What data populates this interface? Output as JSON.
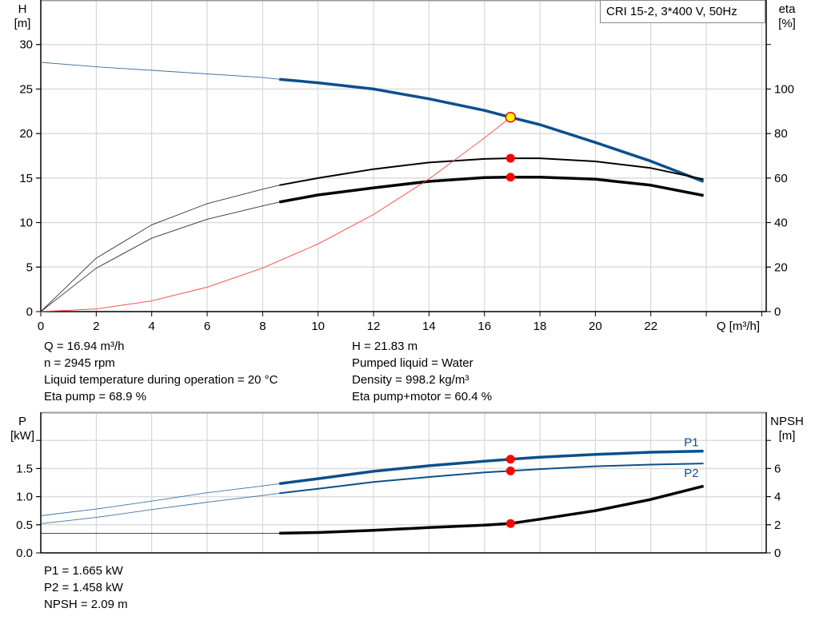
{
  "legend_box": "CRI 15-2, 3*400 V, 50Hz",
  "chart_data": [
    {
      "type": "line",
      "title": "",
      "xlabel": "Q [m³/h]",
      "ylabel_left": [
        "H",
        "[m]"
      ],
      "ylabel_right": [
        "eta",
        "[%]"
      ],
      "xlim": [
        0,
        26
      ],
      "ylim_left": [
        0,
        35
      ],
      "ylim_right": [
        0,
        140
      ],
      "x_ticks": [
        0,
        2,
        4,
        6,
        8,
        10,
        12,
        14,
        16,
        18,
        20,
        22
      ],
      "y_ticks_left": [
        0,
        5,
        10,
        15,
        20,
        25,
        30
      ],
      "y_ticks_right": [
        0,
        20,
        40,
        60,
        80,
        100
      ],
      "grid": true,
      "series": [
        {
          "id": "H",
          "axis": "left",
          "color": "#0d4f8b",
          "thick_from": 8.6,
          "x": [
            0,
            2,
            4,
            6,
            8,
            8.6,
            10,
            12,
            14,
            16,
            16.94,
            18,
            20,
            22,
            23.9
          ],
          "y": [
            28,
            27.5,
            27.1,
            26.7,
            26.3,
            26.1,
            25.7,
            25,
            23.9,
            22.6,
            21.83,
            21,
            19,
            16.9,
            14.6
          ]
        },
        {
          "id": "eta_pump",
          "axis": "right",
          "color": "#000000",
          "thick_from": 8.6,
          "width": 2,
          "x": [
            0,
            2,
            4,
            6,
            8,
            8.6,
            10,
            12,
            14,
            16,
            16.94,
            18,
            20,
            22,
            23.9
          ],
          "y": [
            0,
            24,
            39,
            48.5,
            55,
            56.8,
            60,
            64,
            67,
            68.6,
            68.9,
            68.9,
            67.5,
            64.5,
            59.5
          ]
        },
        {
          "id": "eta_pump_motor",
          "axis": "right",
          "color": "#000000",
          "thick_from": 8.6,
          "width": 3.5,
          "x": [
            0,
            2,
            4,
            6,
            8,
            8.6,
            10,
            12,
            14,
            16,
            16.94,
            18,
            20,
            22,
            23.9
          ],
          "y": [
            0,
            19.5,
            33,
            41.5,
            47.5,
            49.2,
            52.4,
            55.6,
            58.5,
            60.2,
            60.4,
            60.4,
            59.5,
            56.8,
            52.2
          ]
        },
        {
          "id": "system",
          "axis": "left",
          "color": "#ff4040",
          "x": [
            0,
            2,
            4,
            6,
            8,
            10,
            12,
            14,
            16,
            16.94
          ],
          "y": [
            0,
            0.3,
            1.2,
            2.75,
            4.9,
            7.6,
            10.9,
            14.9,
            19.5,
            21.83
          ]
        }
      ],
      "markers": [
        {
          "x": 16.94,
          "y": 21.83,
          "axis": "left",
          "color": "#ffff00",
          "stroke": "#ff0000"
        },
        {
          "x": 16.94,
          "y": 68.9,
          "axis": "right",
          "color": "#ff0000"
        },
        {
          "x": 16.94,
          "y": 60.4,
          "axis": "right",
          "color": "#ff0000"
        }
      ]
    },
    {
      "type": "line",
      "title": "",
      "ylabel_left": [
        "P",
        "[kW]"
      ],
      "ylabel_right": [
        "NPSH",
        "[m]"
      ],
      "xlim": [
        0,
        26
      ],
      "ylim_left": [
        0,
        2.5
      ],
      "ylim_right": [
        0,
        10
      ],
      "y_ticks_left": [
        "0.0",
        "0.5",
        "1.0",
        "1.5"
      ],
      "y_ticks_right": [
        0,
        2,
        4,
        6
      ],
      "grid": true,
      "series": [
        {
          "id": "P1",
          "name": "P1",
          "axis": "left",
          "color": "#0d4f8b",
          "thick_from": 8.6,
          "width": 3.5,
          "x": [
            0,
            2,
            4,
            6,
            8,
            8.6,
            10,
            12,
            14,
            16,
            16.94,
            18,
            20,
            22,
            23.9
          ],
          "y": [
            0.66,
            0.78,
            0.92,
            1.07,
            1.19,
            1.23,
            1.32,
            1.45,
            1.55,
            1.63,
            1.665,
            1.7,
            1.75,
            1.79,
            1.81
          ]
        },
        {
          "id": "P2",
          "name": "P2",
          "axis": "left",
          "color": "#0d4f8b",
          "thick_from": 8.6,
          "width": 2,
          "x": [
            0,
            2,
            4,
            6,
            8,
            8.6,
            10,
            12,
            14,
            16,
            16.94,
            18,
            20,
            22,
            23.9
          ],
          "y": [
            0.52,
            0.63,
            0.77,
            0.9,
            1.02,
            1.06,
            1.14,
            1.26,
            1.35,
            1.43,
            1.458,
            1.49,
            1.54,
            1.57,
            1.59
          ]
        },
        {
          "id": "NPSH",
          "axis": "right",
          "color": "#000000",
          "thick_from": 8.6,
          "width": 3.5,
          "x": [
            0,
            4,
            8,
            8.6,
            10,
            12,
            14,
            16,
            16.94,
            18,
            20,
            22,
            23.9
          ],
          "y": [
            1.4,
            1.4,
            1.4,
            1.4,
            1.45,
            1.6,
            1.8,
            1.98,
            2.09,
            2.4,
            3.0,
            3.8,
            4.75
          ]
        }
      ],
      "markers": [
        {
          "x": 16.94,
          "y": 1.665,
          "axis": "left",
          "color": "#ff0000"
        },
        {
          "x": 16.94,
          "y": 1.458,
          "axis": "left",
          "color": "#ff0000"
        },
        {
          "x": 16.94,
          "y": 2.09,
          "axis": "right",
          "color": "#ff0000"
        }
      ]
    }
  ],
  "info_top_left": [
    "Q = 16.94 m³/h",
    "n = 2945 rpm",
    "Liquid temperature during operation = 20 °C",
    "Eta pump = 68.9 %"
  ],
  "info_top_right": [
    "H = 21.83 m",
    "Pumped liquid = Water",
    "Density = 998.2 kg/m³",
    "Eta pump+motor = 60.4 %"
  ],
  "info_bottom": [
    "P1 = 1.665 kW",
    "P2 = 1.458 kW",
    "NPSH = 2.09 m"
  ]
}
